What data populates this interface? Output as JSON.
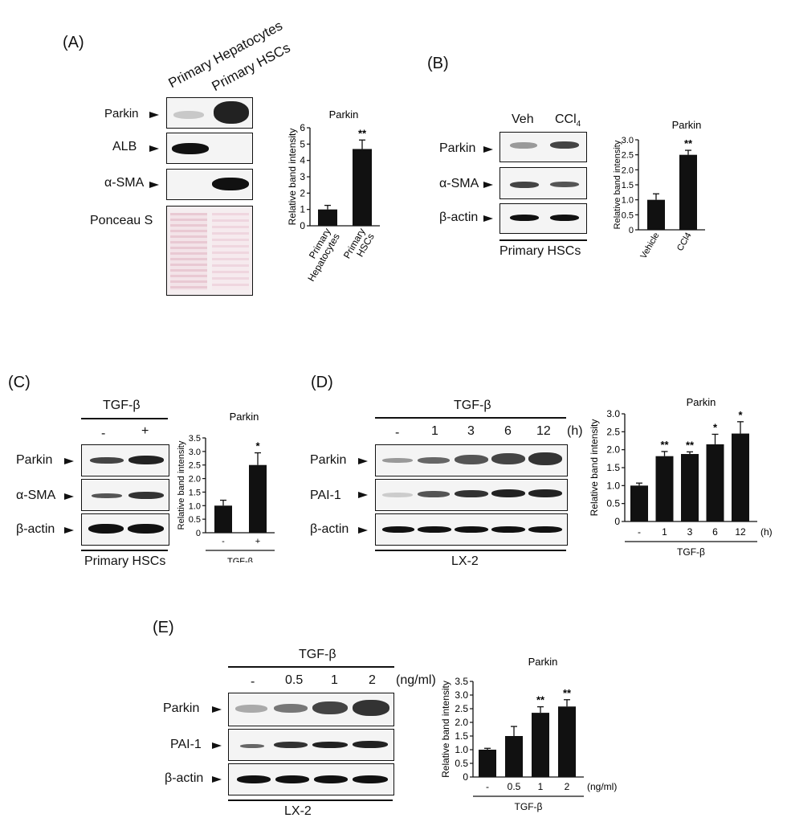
{
  "panels": {
    "A": {
      "letter": "(A)",
      "lane_headers": [
        "Primary Hepatocytes",
        "Primary HSCs"
      ],
      "rows": [
        "Parkin",
        "ALB",
        "α-SMA",
        "Ponceau S"
      ]
    },
    "B": {
      "letter": "(B)",
      "lane_headers": [
        "Veh",
        "CCl",
        "4"
      ],
      "rows": [
        "Parkin",
        "α-SMA",
        "β-actin"
      ],
      "cell": "Primary HSCs"
    },
    "C": {
      "letter": "(C)",
      "treatment": "TGF-β",
      "lanes": [
        "-",
        "+"
      ],
      "rows": [
        "Parkin",
        "α-SMA",
        "β-actin"
      ],
      "cell": "Primary HSCs"
    },
    "D": {
      "letter": "(D)",
      "treatment": "TGF-β",
      "lanes": [
        "-",
        "1",
        "3",
        "6",
        "12"
      ],
      "unit": "(h)",
      "rows": [
        "Parkin",
        "PAI-1",
        "β-actin"
      ],
      "cell": "LX-2"
    },
    "E": {
      "letter": "(E)",
      "treatment": "TGF-β",
      "lanes": [
        "-",
        "0.5",
        "1",
        "2"
      ],
      "unit": "(ng/ml)",
      "rows": [
        "Parkin",
        "PAI-1",
        "β-actin"
      ],
      "cell": "LX-2"
    }
  },
  "chart_data": [
    {
      "panel": "A",
      "type": "bar",
      "title": "Parkin",
      "ylabel": "Relative band intensity",
      "ylim": [
        0,
        6
      ],
      "yticks": [
        "0",
        "1",
        "2",
        "3",
        "4",
        "5",
        "6"
      ],
      "categories": [
        "Primary Hepatocytes",
        "Primary HSCs"
      ],
      "tick_labels": [
        [
          "Primary",
          "Hepatocytes"
        ],
        [
          "Primary",
          "HSCs"
        ]
      ],
      "values": [
        1.0,
        4.7
      ],
      "errors": [
        0.25,
        0.55
      ],
      "annotations": [
        "",
        "**"
      ]
    },
    {
      "panel": "B",
      "type": "bar",
      "title": "Parkin",
      "ylabel": "Relative band intensity",
      "ylim": [
        0,
        3.0
      ],
      "yticks": [
        "0",
        "0.5",
        "1.0",
        "1.5",
        "2.0",
        "2.5",
        "3.0"
      ],
      "categories": [
        "Vehicle",
        "CCl4"
      ],
      "tick_labels": [
        [
          "Vehicle"
        ],
        [
          "CCl4"
        ]
      ],
      "values": [
        1.0,
        2.5
      ],
      "errors": [
        0.2,
        0.15
      ],
      "annotations": [
        "",
        "**"
      ]
    },
    {
      "panel": "C",
      "type": "bar",
      "title": "Parkin",
      "ylabel": "Relative band intensity",
      "ylim": [
        0,
        3.5
      ],
      "yticks": [
        "0",
        "0.5",
        "1.0",
        "1.5",
        "2.0",
        "2.5",
        "3.0",
        "3.5"
      ],
      "categories": [
        "-",
        "+"
      ],
      "values": [
        1.0,
        2.5
      ],
      "errors": [
        0.2,
        0.45
      ],
      "annotations": [
        "",
        "*"
      ],
      "xgroup": "TGF-β"
    },
    {
      "panel": "D",
      "type": "bar",
      "title": "Parkin",
      "ylabel": "Relative band intensity",
      "ylim": [
        0,
        3.0
      ],
      "yticks": [
        "0",
        "0.5",
        "1.0",
        "1.5",
        "2.0",
        "2.5",
        "3.0"
      ],
      "categories": [
        "-",
        "1",
        "3",
        "6",
        "12"
      ],
      "values": [
        1.0,
        1.82,
        1.88,
        2.15,
        2.45
      ],
      "errors": [
        0.07,
        0.13,
        0.06,
        0.28,
        0.33
      ],
      "annotations": [
        "",
        "**",
        "**",
        "*",
        "*"
      ],
      "xgroup": "TGF-β",
      "xunit": "(h)"
    },
    {
      "panel": "E",
      "type": "bar",
      "title": "Parkin",
      "ylabel": "Relative band intensity",
      "ylim": [
        0,
        3.5
      ],
      "yticks": [
        "0",
        "0.5",
        "1.0",
        "1.5",
        "2.0",
        "2.5",
        "3.0",
        "3.5"
      ],
      "categories": [
        "-",
        "0.5",
        "1",
        "2"
      ],
      "values": [
        1.0,
        1.5,
        2.35,
        2.58
      ],
      "errors": [
        0.05,
        0.35,
        0.22,
        0.25
      ],
      "annotations": [
        "",
        "",
        "**",
        "**"
      ],
      "xgroup": "TGF-β",
      "xunit": "(ng/ml)"
    }
  ]
}
